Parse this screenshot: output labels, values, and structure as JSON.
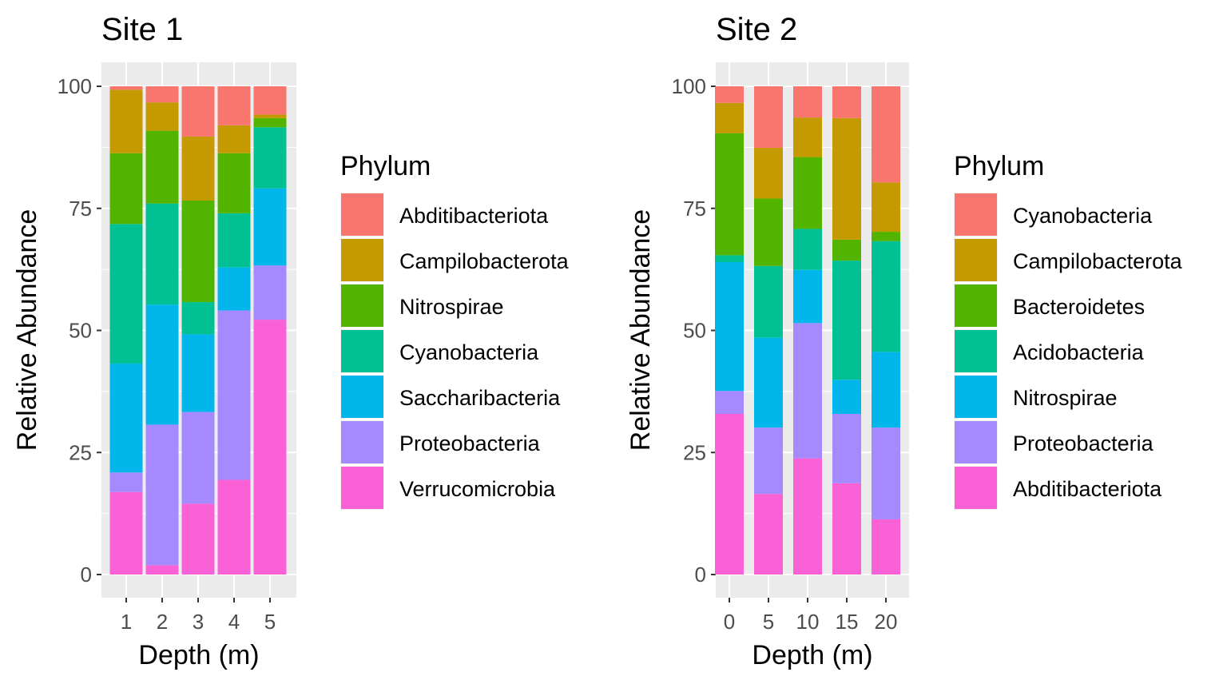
{
  "chart_data": [
    {
      "type": "bar",
      "stacked": true,
      "title": "Site 1",
      "xlabel": "Depth (m)",
      "ylabel": "Relative Abundance",
      "categories": [
        "1",
        "2",
        "3",
        "4",
        "5"
      ],
      "ylim": [
        0,
        100
      ],
      "yticks": [
        "0",
        "25",
        "50",
        "75",
        "100"
      ],
      "grid": true,
      "legend_position": "right",
      "legend_title": "Phylum",
      "series": [
        {
          "name": "Verrucomicrobia",
          "color": "#FB61D7",
          "values": [
            16.9,
            1.9,
            14.5,
            19.4,
            52.2
          ]
        },
        {
          "name": "Proteobacteria",
          "color": "#A58AFF",
          "values": [
            4.0,
            28.8,
            18.8,
            34.7,
            11.1
          ]
        },
        {
          "name": "Saccharibacteria",
          "color": "#00B6EB",
          "values": [
            22.3,
            24.6,
            15.9,
            8.8,
            15.8
          ]
        },
        {
          "name": "Cyanobacteria",
          "color": "#00C094",
          "values": [
            28.6,
            20.7,
            6.6,
            11.1,
            12.5
          ]
        },
        {
          "name": "Nitrospirae",
          "color": "#53B400",
          "values": [
            14.5,
            14.9,
            20.8,
            12.3,
            1.9
          ]
        },
        {
          "name": "Campilobacterota",
          "color": "#C49A00",
          "values": [
            13.0,
            5.8,
            13.1,
            5.7,
            0.7
          ]
        },
        {
          "name": "Abditibacteriota",
          "color": "#F8766D",
          "values": [
            0.7,
            3.3,
            10.3,
            8.0,
            5.8
          ]
        }
      ]
    },
    {
      "type": "bar",
      "stacked": true,
      "title": "Site 2",
      "xlabel": "Depth (m)",
      "ylabel": "Relative Abundance",
      "categories": [
        "0",
        "5",
        "10",
        "15",
        "20"
      ],
      "ylim": [
        0,
        100
      ],
      "yticks": [
        "0",
        "25",
        "50",
        "75",
        "100"
      ],
      "grid": true,
      "legend_position": "right",
      "legend_title": "Phylum",
      "series": [
        {
          "name": "Abditibacteriota",
          "color": "#FB61D7",
          "values": [
            32.9,
            16.5,
            23.8,
            18.7,
            11.3
          ]
        },
        {
          "name": "Proteobacteria",
          "color": "#A58AFF",
          "values": [
            4.7,
            13.6,
            27.7,
            14.2,
            18.8
          ]
        },
        {
          "name": "Nitrospirae",
          "color": "#00B6EB",
          "values": [
            26.4,
            18.4,
            10.9,
            7.0,
            15.5
          ]
        },
        {
          "name": "Acidobacteria",
          "color": "#00C094",
          "values": [
            1.4,
            14.7,
            8.4,
            24.4,
            22.7
          ]
        },
        {
          "name": "Bacteroidetes",
          "color": "#53B400",
          "values": [
            25.0,
            13.8,
            14.7,
            4.3,
            1.9
          ]
        },
        {
          "name": "Campilobacterota",
          "color": "#C49A00",
          "values": [
            6.2,
            10.4,
            8.1,
            24.9,
            10.1
          ]
        },
        {
          "name": "Cyanobacteria",
          "color": "#F8766D",
          "values": [
            3.4,
            12.6,
            6.4,
            6.5,
            19.7
          ]
        }
      ]
    }
  ]
}
